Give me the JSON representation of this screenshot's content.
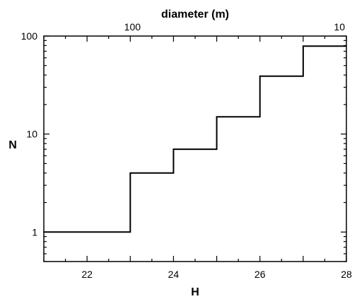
{
  "chart_data": {
    "type": "line",
    "step": "post",
    "title": "",
    "xlabel": "H",
    "ylabel": "N",
    "top_xlabel": "diameter (m)",
    "xlim": [
      21,
      28
    ],
    "ylim": [
      0.5,
      100
    ],
    "yscale": "log",
    "grid": false,
    "x_ticks": [
      22,
      23,
      24,
      25,
      26,
      27,
      28
    ],
    "x_tick_labels": [
      "22",
      "24",
      "26",
      "28"
    ],
    "y_tick_labels": [
      "1",
      "10",
      "100"
    ],
    "top_ticks": [
      {
        "label": "100",
        "H": 23.05
      },
      {
        "label": "10",
        "H": 28
      }
    ],
    "series": [
      {
        "x": [
          21,
          23,
          24,
          25,
          26,
          27,
          28
        ],
        "y": [
          1,
          4,
          7,
          15,
          39,
          79,
          79
        ]
      }
    ]
  }
}
